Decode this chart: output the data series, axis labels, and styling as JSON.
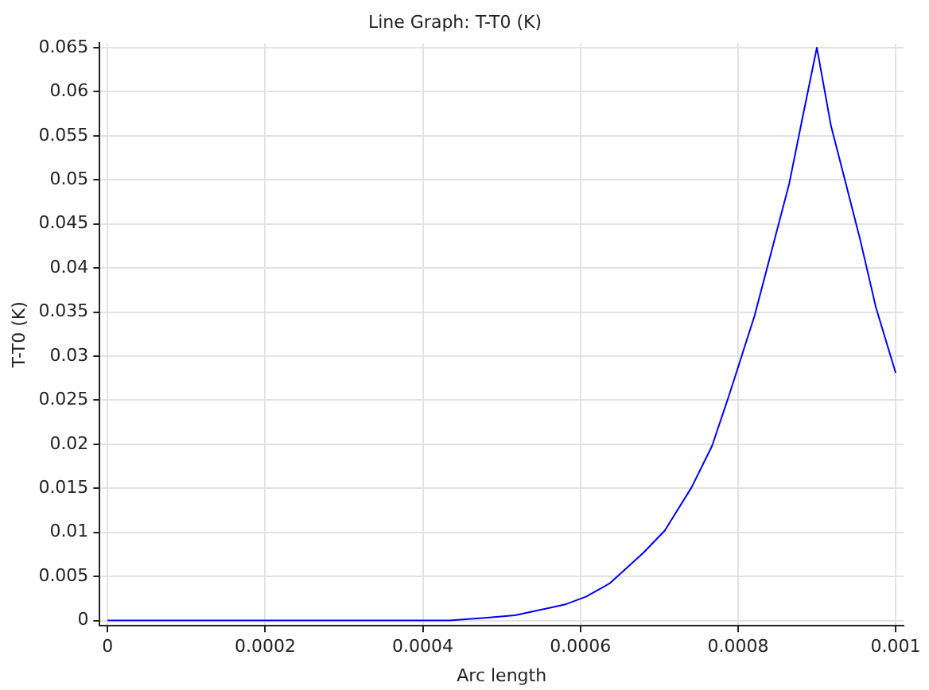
{
  "chart_data": {
    "type": "line",
    "title": "Line Graph: T-T0 (K)",
    "xlabel": "Arc length",
    "ylabel": "T-T0 (K)",
    "x": [
      0,
      0.0002,
      0.0004,
      0.000434,
      0.000479,
      0.000517,
      0.00058,
      0.000607,
      0.000637,
      0.00068,
      0.000707,
      0.000741,
      0.000767,
      0.000788,
      0.000801,
      0.000821,
      0.000841,
      0.000865,
      0.000881,
      0.0009,
      0.000918,
      0.000935,
      0.000955,
      0.000975,
      0.001
    ],
    "series": [
      {
        "color": "#0000ff",
        "values": [
          0,
          0,
          0,
          0,
          0.0003,
          0.0006,
          0.0018,
          0.0027,
          0.0042,
          0.0077,
          0.0102,
          0.0151,
          0.0198,
          0.0254,
          0.029,
          0.0346,
          0.0414,
          0.0496,
          0.0567,
          0.065,
          0.0561,
          0.0502,
          0.0432,
          0.0355,
          0.0281
        ]
      }
    ],
    "xlim": [
      -1e-05,
      0.00101
    ],
    "xticks": [
      0,
      0.0002,
      0.0004,
      0.0006,
      0.0008,
      0.001
    ],
    "ylim": [
      -0.0006,
      0.0655
    ],
    "yticks": [
      0,
      0.005,
      0.01,
      0.015,
      0.02,
      0.025,
      0.03,
      0.035,
      0.04,
      0.045,
      0.05,
      0.055,
      0.06,
      0.065
    ],
    "grid": true,
    "legend": false,
    "marker": "none",
    "line_style": "solid"
  }
}
